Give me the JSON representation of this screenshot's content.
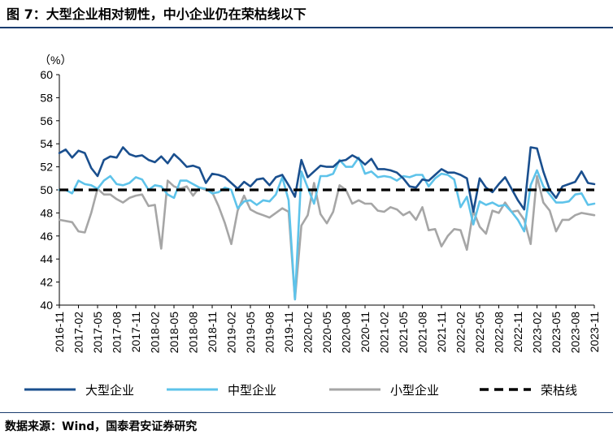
{
  "figure_title": "图 7：大型企业相对韧性，中小企业仍在荣枯线以下",
  "source": "数据来源：Wind，国泰君安证券研究",
  "chart_data": {
    "type": "line",
    "title": "",
    "ylabel": "（%）",
    "xlabel": "",
    "ylim": [
      40,
      60
    ],
    "yticks": [
      40,
      42,
      44,
      46,
      48,
      50,
      52,
      54,
      56,
      58,
      60
    ],
    "x_start": "2016-11",
    "xtick_labels": [
      "2016-11",
      "2017-02",
      "2017-05",
      "2017-08",
      "2017-11",
      "2018-02",
      "2018-05",
      "2018-08",
      "2018-11",
      "2019-02",
      "2019-05",
      "2019-08",
      "2019-11",
      "2020-02",
      "2020-05",
      "2020-08",
      "2020-11",
      "2021-02",
      "2021-05",
      "2021-08",
      "2021-11",
      "2022-02",
      "2022-05",
      "2022-08",
      "2022-11",
      "2023-02",
      "2023-05",
      "2023-08",
      "2023-11"
    ],
    "grid": false,
    "legend_position": "bottom",
    "series": [
      {
        "name": "大型企业",
        "color": "#1a4f8e",
        "values": [
          53.2,
          53.5,
          52.8,
          53.4,
          53.2,
          51.9,
          51.2,
          52.6,
          52.9,
          52.8,
          53.7,
          53.1,
          52.9,
          53.0,
          52.6,
          52.4,
          52.9,
          52.3,
          53.1,
          52.6,
          52.0,
          52.1,
          51.9,
          50.6,
          51.4,
          51.3,
          51.1,
          50.6,
          50.1,
          50.7,
          50.3,
          50.9,
          51.0,
          50.4,
          51.1,
          51.3,
          50.4,
          49.4,
          52.6,
          51.1,
          51.6,
          52.1,
          52.0,
          52.0,
          52.5,
          52.6,
          53.0,
          52.7,
          52.2,
          52.7,
          51.8,
          51.8,
          51.7,
          51.5,
          51.0,
          50.3,
          50.2,
          50.9,
          50.8,
          51.3,
          51.8,
          51.5,
          51.5,
          51.3,
          51.0,
          48.1,
          51.0,
          50.2,
          49.8,
          50.5,
          51.1,
          50.1,
          49.1,
          48.3,
          53.7,
          53.6,
          51.6,
          50.0,
          49.3,
          50.3,
          50.5,
          50.7,
          51.6,
          50.6,
          50.5
        ]
      },
      {
        "name": "中型企业",
        "color": "#5ec3ea",
        "values": [
          50.0,
          50.0,
          49.7,
          50.8,
          50.5,
          50.4,
          50.1,
          50.8,
          51.2,
          50.5,
          50.4,
          50.6,
          51.1,
          50.9,
          50.0,
          50.4,
          50.3,
          49.6,
          49.3,
          50.8,
          50.8,
          50.5,
          50.2,
          50.1,
          49.7,
          49.8,
          50.2,
          50.0,
          48.4,
          49.0,
          49.1,
          48.7,
          49.1,
          49.0,
          49.6,
          51.1,
          49.1,
          40.5,
          51.6,
          50.2,
          48.8,
          51.2,
          51.2,
          51.4,
          52.6,
          52.0,
          52.0,
          52.8,
          51.4,
          51.6,
          51.1,
          51.2,
          51.1,
          50.8,
          51.2,
          51.1,
          51.3,
          51.3,
          50.3,
          51.0,
          51.4,
          51.3,
          50.9,
          48.5,
          49.4,
          47.0,
          49.0,
          48.7,
          48.9,
          48.6,
          48.7,
          48.1,
          47.4,
          46.4,
          50.4,
          51.7,
          50.3,
          49.6,
          48.9,
          48.9,
          49.0,
          49.6,
          49.7,
          48.7,
          48.8
        ]
      },
      {
        "name": "小型企业",
        "color": "#a6a6a6",
        "values": [
          47.4,
          47.3,
          47.2,
          46.4,
          46.3,
          48.0,
          50.1,
          49.6,
          49.6,
          49.2,
          48.9,
          49.3,
          49.5,
          49.6,
          48.6,
          48.7,
          44.9,
          50.8,
          50.3,
          50.1,
          50.3,
          49.5,
          50.2,
          50.0,
          49.8,
          48.6,
          47.1,
          45.3,
          48.2,
          49.5,
          48.3,
          48.0,
          47.8,
          47.6,
          48.0,
          48.4,
          48.1,
          40.5,
          46.9,
          47.8,
          50.6,
          47.9,
          47.1,
          48.1,
          50.4,
          50.0,
          48.8,
          49.1,
          48.8,
          48.8,
          48.2,
          48.1,
          48.5,
          48.3,
          47.8,
          48.1,
          47.4,
          48.5,
          46.5,
          46.6,
          45.1,
          46.0,
          46.6,
          46.5,
          44.8,
          48.2,
          46.8,
          46.2,
          48.2,
          48.0,
          48.9,
          48.1,
          48.2,
          47.4,
          45.3,
          51.2,
          48.9,
          48.2,
          46.4,
          47.4,
          47.4,
          47.8,
          48.0,
          47.9,
          47.8
        ]
      },
      {
        "name": "荣枯线",
        "color": "#000000",
        "values": [
          50,
          50,
          50,
          50,
          50,
          50,
          50,
          50,
          50,
          50,
          50,
          50,
          50,
          50,
          50,
          50,
          50,
          50,
          50,
          50,
          50,
          50,
          50,
          50,
          50,
          50,
          50,
          50,
          50,
          50,
          50,
          50,
          50,
          50,
          50,
          50,
          50,
          50,
          50,
          50,
          50,
          50,
          50,
          50,
          50,
          50,
          50,
          50,
          50,
          50,
          50,
          50,
          50,
          50,
          50,
          50,
          50,
          50,
          50,
          50,
          50,
          50,
          50,
          50,
          50,
          50,
          50,
          50,
          50,
          50,
          50,
          50,
          50,
          50,
          50,
          50,
          50,
          50,
          50,
          50,
          50,
          50,
          50,
          50,
          50
        ]
      }
    ]
  }
}
